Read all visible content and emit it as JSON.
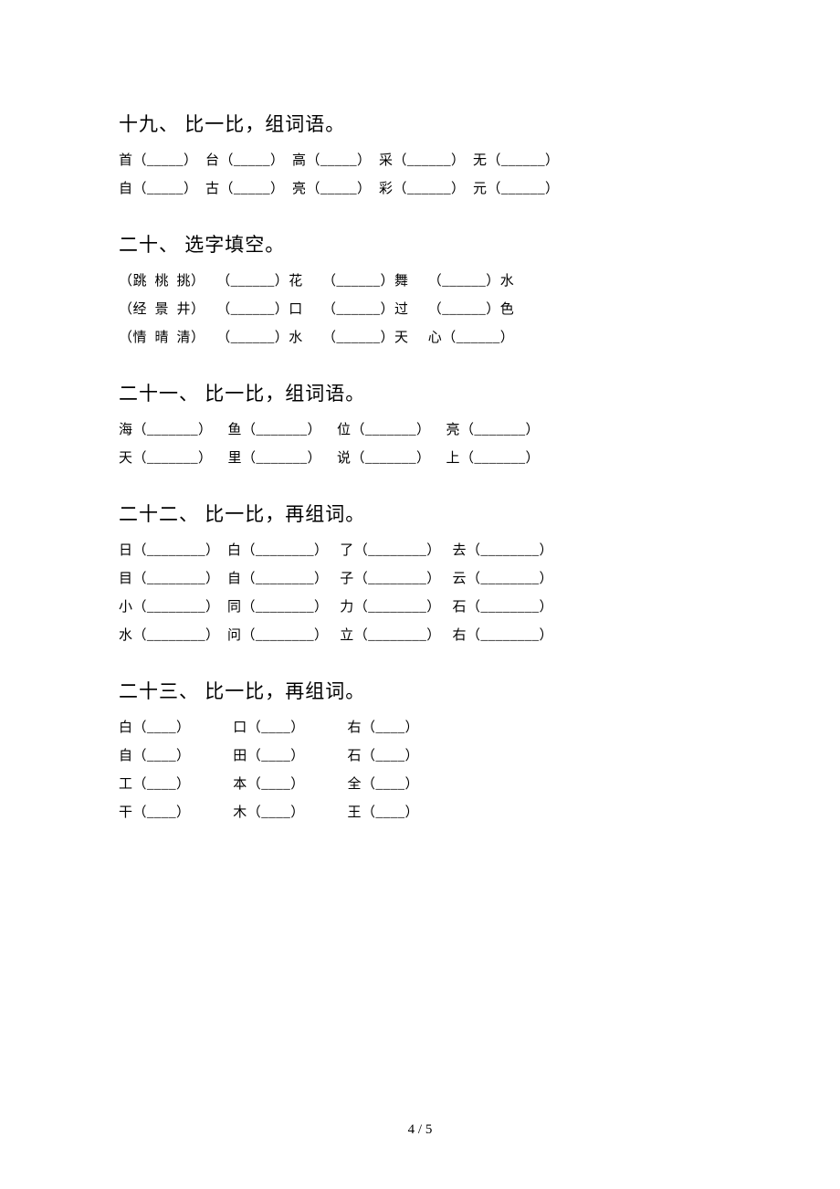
{
  "page_number": "4 / 5",
  "s19": {
    "title": "十九、 比一比，组词语。",
    "row1": "首（_____）  台（_____）  高（_____）  采（______）  无（______）",
    "row2": "自（_____）  古（_____）  亮（_____）  彩（______）  元（______）"
  },
  "s20": {
    "title": "二十、 选字填空。",
    "row1": "（跳  桃  挑）   （______）花     （______）舞     （______）水",
    "row2": "（经  景  井）   （______）口     （______）过     （______）色",
    "row3": "（情  晴  清）   （______）水     （______）天     心（______）"
  },
  "s21": {
    "title": "二十一、 比一比，组词语。",
    "row1": "海（_______）    鱼（_______）    位（_______）    亮（_______）",
    "row2": "天（_______）    里（_______）    说（_______）    上（_______）"
  },
  "s22": {
    "title": "二十二、 比一比，再组词。",
    "row1": "日（________）  白（________）   了（________）   去（________）",
    "row2": "目（________）  自（________）   子（________）   云（________）",
    "row3": "小（________）  同（________）   力（________）   石（________）",
    "row4": "水（________）  问（________）   立（________）   右（________）"
  },
  "s23": {
    "title": "二十三、 比一比，再组词。",
    "row1": "白（____）           口（____）           右（____）",
    "row2": "自（____）           田（____）           石（____）",
    "row3": "工（____）           本（____）           全（____）",
    "row4": "干（____）           木（____）           王（____）"
  }
}
